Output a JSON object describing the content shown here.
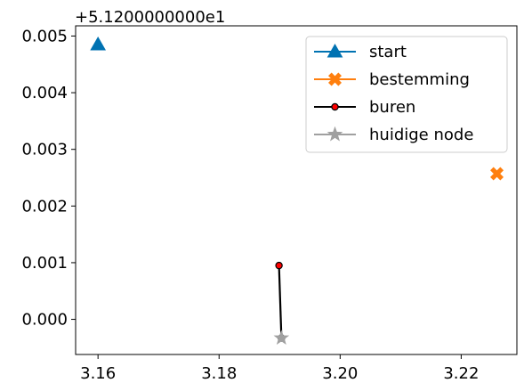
{
  "chart_data": {
    "type": "scatter",
    "title": "",
    "xlabel": "",
    "ylabel": "",
    "y_offset_text": "+5.1200000000e1",
    "xlim": [
      3.1563,
      3.2292
    ],
    "ylim": [
      -0.00062,
      0.00518
    ],
    "x_ticks": [
      3.16,
      3.18,
      3.2,
      3.22
    ],
    "x_tick_labels": [
      "3.16",
      "3.18",
      "3.20",
      "3.22"
    ],
    "y_ticks": [
      0.0,
      0.001,
      0.002,
      0.003,
      0.004,
      0.005
    ],
    "y_tick_labels": [
      "0.000",
      "0.001",
      "0.002",
      "0.003",
      "0.004",
      "0.005"
    ],
    "grid": false,
    "legend_position": "top-right",
    "series": [
      {
        "name": "start",
        "color": "#0072B2",
        "marker": "triangle-up",
        "line": false,
        "points": [
          {
            "x": 3.16,
            "y": 0.00485
          }
        ]
      },
      {
        "name": "bestemming",
        "color": "#FF7F0E",
        "marker": "x-filled",
        "line": false,
        "points": [
          {
            "x": 3.2259,
            "y": 0.00257
          }
        ]
      },
      {
        "name": "buren",
        "color": "#000000",
        "marker_fill": "#FF0000",
        "marker": "circle",
        "line": true,
        "points": [
          {
            "x": 3.1899,
            "y": 0.00095
          },
          {
            "x": 3.1903,
            "y": -0.00033
          }
        ]
      },
      {
        "name": "huidige node",
        "color": "#A0A0A0",
        "marker": "star",
        "line": false,
        "points": [
          {
            "x": 3.1903,
            "y": -0.00033
          }
        ]
      }
    ]
  }
}
